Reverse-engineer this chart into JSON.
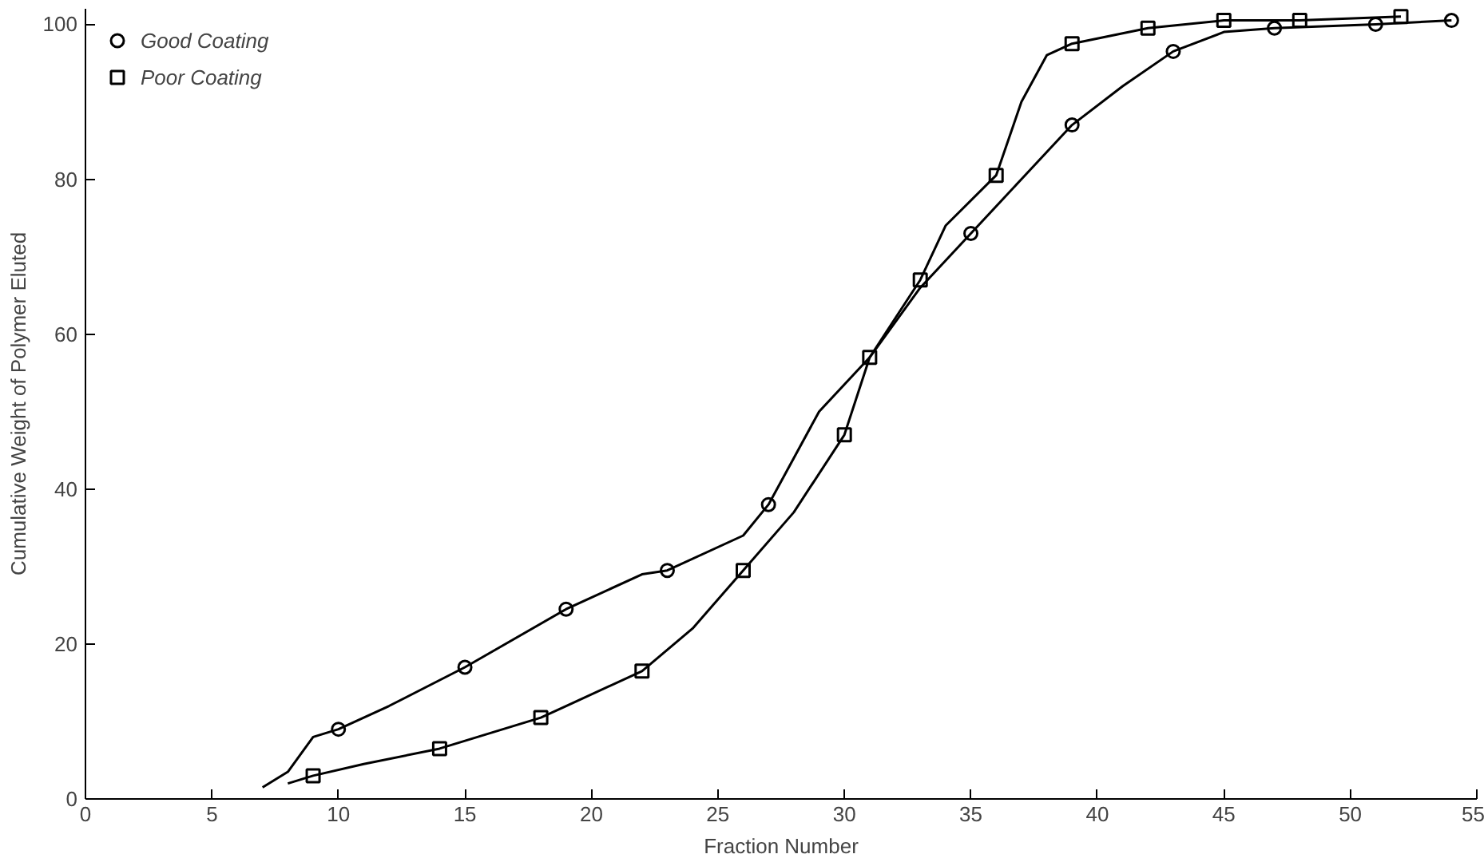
{
  "chart_data": {
    "type": "scatter",
    "xlabel": "Fraction Number",
    "ylabel": "Cumulative Weight of Polymer Eluted",
    "xlim": [
      0,
      55
    ],
    "ylim": [
      0,
      102
    ],
    "xticks": [
      0,
      5,
      10,
      15,
      20,
      25,
      30,
      35,
      40,
      45,
      50,
      55
    ],
    "yticks": [
      0,
      20,
      40,
      60,
      80,
      100
    ],
    "grid": false,
    "legend": "top left",
    "series": [
      {
        "name": "Good Coating",
        "marker": "circle",
        "color": "#000000",
        "x": [
          10,
          15,
          19,
          23,
          27,
          31,
          35,
          39,
          43,
          47,
          51,
          54
        ],
        "values": [
          9,
          17,
          24.5,
          29.5,
          38,
          null,
          73,
          87,
          96.5,
          99.5,
          100,
          100.5
        ]
      },
      {
        "name": "Poor Coating",
        "marker": "square",
        "color": "#000000",
        "x": [
          9,
          14,
          18,
          22,
          26,
          30,
          31,
          33,
          36,
          39,
          42,
          45,
          48,
          52
        ],
        "values": [
          3,
          6.5,
          10.5,
          16.5,
          29.5,
          47,
          57,
          67,
          80.5,
          97.5,
          99.5,
          100.5,
          100.5,
          101
        ]
      },
      {
        "type": "line",
        "color": "#000000",
        "x": [
          7,
          8,
          9,
          10,
          12,
          15,
          19,
          22,
          23,
          26,
          27,
          28,
          29,
          31,
          33,
          35,
          37,
          39,
          41,
          43,
          45,
          47,
          51,
          54
        ],
        "values": [
          1.5,
          3.5,
          8,
          9,
          12,
          17,
          24.5,
          29,
          29.5,
          34,
          38,
          44,
          50,
          57,
          66,
          73,
          80,
          87,
          92,
          96.5,
          99,
          99.5,
          100,
          100.5
        ]
      },
      {
        "type": "line",
        "color": "#000000",
        "x": [
          8,
          9,
          11,
          14,
          18,
          19,
          22,
          24,
          26,
          28,
          30,
          31,
          33,
          34,
          36,
          37,
          38,
          39,
          42,
          45,
          48,
          52
        ],
        "values": [
          2,
          3,
          4.5,
          6.5,
          10.5,
          12,
          16.5,
          22,
          29.5,
          37,
          47,
          57,
          67,
          74,
          80.5,
          90,
          96,
          97.5,
          99.5,
          100.5,
          100.5,
          101
        ]
      }
    ]
  }
}
